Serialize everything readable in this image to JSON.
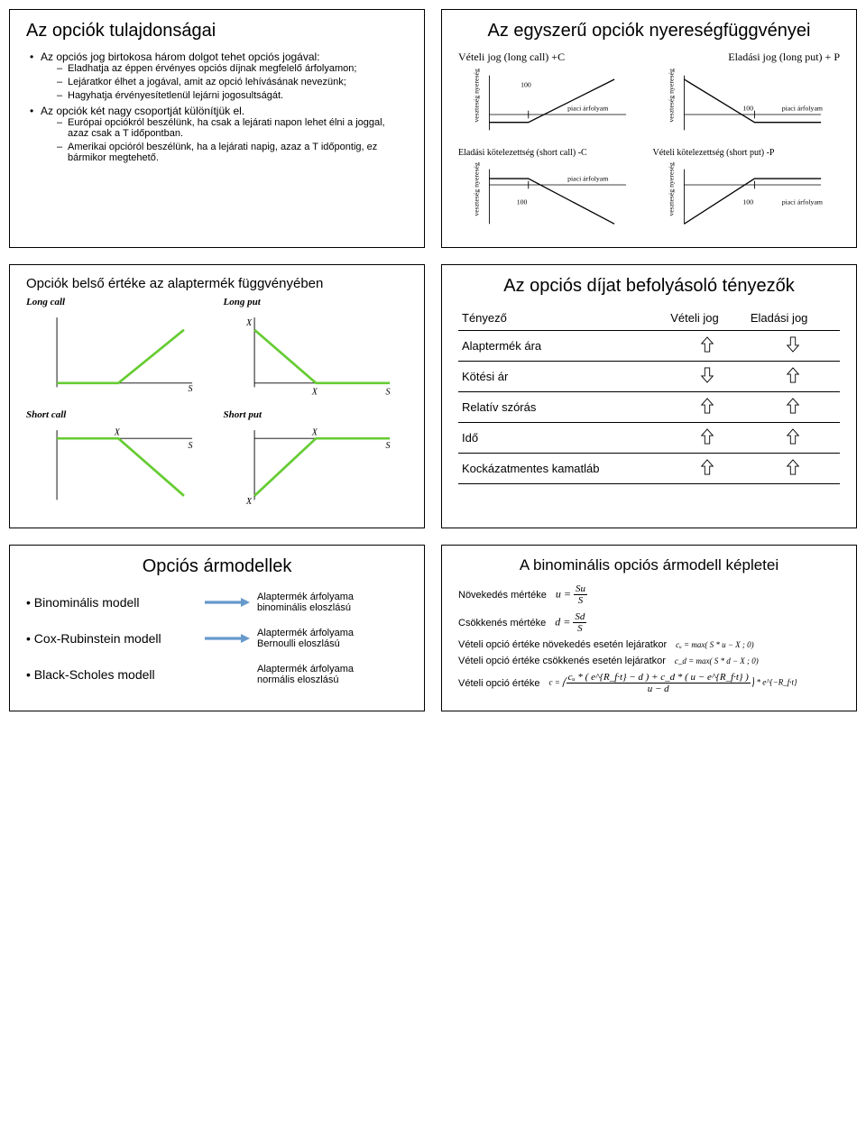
{
  "slide1": {
    "title": "Az opciók tulajdonságai",
    "b1": "Az opciós jog birtokosa három dolgot tehet opciós jogával:",
    "s1a": "Eladhatja az éppen érvényes opciós díjnak megfelelő árfolyamon;",
    "s1b": "Lejáratkor élhet a jogával, amit az opció lehívásának nevezünk;",
    "s1c": "Hagyhatja érvényesítetlenül lejárni jogosultságát.",
    "b2": "Az opciók két nagy csoportját különítjük el.",
    "s2a": "Európai opciókról beszélünk, ha csak a lejárati napon lehet élni a joggal, azaz csak a T időpontban.",
    "s2b": "Amerikai opcióról beszélünk, ha a lejárati napig, azaz a T időpontig, ez bármikor megtehető."
  },
  "slide2": {
    "title": "Az egyszerű opciók nyereségfüggvényei",
    "top_left": "Vételi jog (long call) +C",
    "top_right": "Eladási jog (long put) + P",
    "mid_left": "Eladási kötelezettség (short call) -C",
    "mid_right": "Vételi kötelezettség (short put) -P",
    "ylab": "veszteség   nyereség",
    "xlab": "piaci árfolyam",
    "strike": "100",
    "line_color": "#000000",
    "axis_color": "#000000"
  },
  "slide3": {
    "title": "Opciók belső értéke az alaptermék függvényében",
    "long_call": "Long call",
    "long_put": "Long put",
    "short_call": "Short call",
    "short_put": "Short put",
    "x_label": "X",
    "s_label": "S",
    "line_color": "#66cc33",
    "axis_color": "#000000"
  },
  "slide4": {
    "title": "Az opciós díjat befolyásoló tényezők",
    "col_factor": "Tényező",
    "col_call": "Vételi jog",
    "col_put": "Eladási jog",
    "rows": [
      {
        "label": "Alaptermék ára",
        "call": "up",
        "put": "down"
      },
      {
        "label": "Kötési ár",
        "call": "down",
        "put": "up"
      },
      {
        "label": "Relatív szórás",
        "call": "up",
        "put": "up"
      },
      {
        "label": "Idő",
        "call": "up",
        "put": "up"
      },
      {
        "label": "Kockázatmentes kamatláb",
        "call": "up",
        "put": "up"
      }
    ],
    "arrow_stroke": "#000000",
    "arrow_fill": "#ffffff"
  },
  "slide5": {
    "title": "Opciós ármodellek",
    "m1": "Binominális modell",
    "d1": "Alaptermék árfolyama binominális eloszlású",
    "m2": "Cox-Rubinstein modell",
    "d2": "Alaptermék árfolyama Bernoulli eloszlású",
    "m3": "Black-Scholes modell",
    "d3": "Alaptermék árfolyama normális eloszlású",
    "arrow_color": "#6699cc"
  },
  "slide6": {
    "title": "A binominális opciós ármodell képletei",
    "l1": "Növekedés mértéke",
    "f1_lhs": "u =",
    "f1_num": "Su",
    "f1_den": "S",
    "l2": "Csökkenés mértéke",
    "f2_lhs": "d =",
    "f2_num": "Sd",
    "f2_den": "S",
    "l3": "Vételi opció értéke növekedés esetén lejáratkor",
    "f3": "cᵤ = max( S * u − X ; 0)",
    "l4": "Vételi opció értéke csökkenés esetén lejáratkor",
    "f4": "c_d = max( S * d − X ; 0)",
    "l5": "Vételi opció értéke",
    "f5_lhs": "c =",
    "f5_num": "cᵤ * ( e^{R_f·t} − d ) + c_d * ( u − e^{R_f·t} )",
    "f5_den": "u − d",
    "f5_tail": " * e^{−R_f·t}"
  }
}
